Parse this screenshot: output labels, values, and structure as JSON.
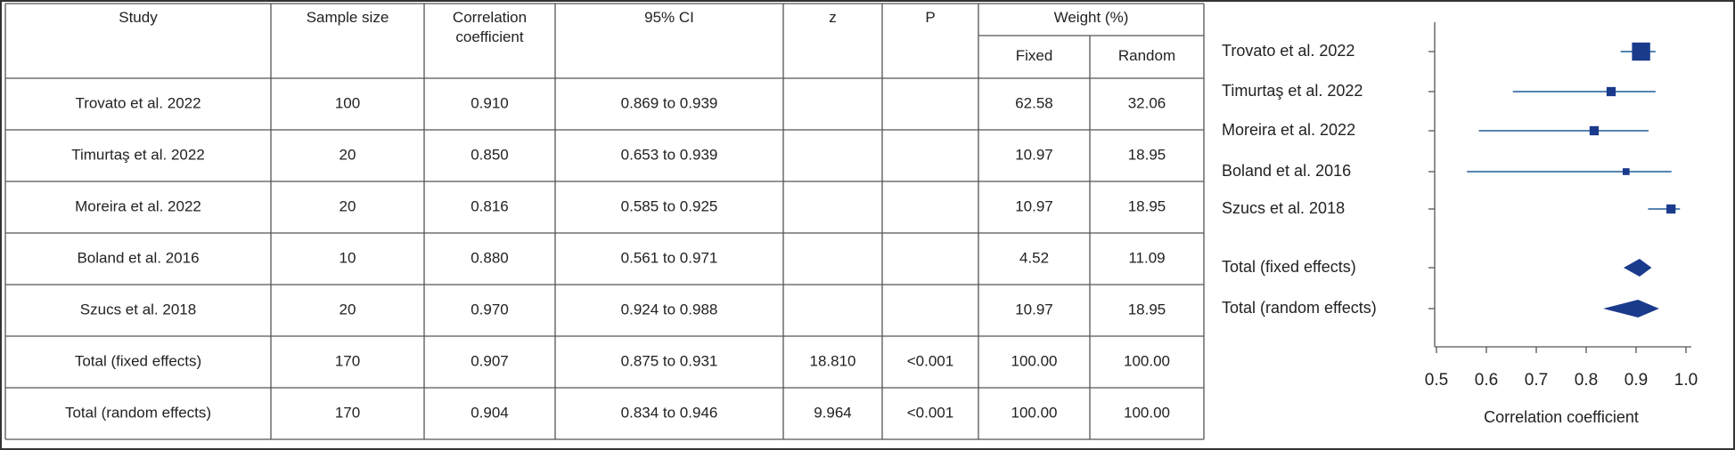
{
  "table": {
    "header": [
      "Study",
      "Sample size",
      "Correlation coefficient",
      "95% CI",
      "z",
      "P",
      "Weight (%)"
    ],
    "subheader": [
      "Fixed",
      "Random"
    ],
    "rows": [
      [
        "Trovato et al. 2022",
        "100",
        "0.910",
        "0.869 to 0.939",
        null,
        null,
        "62.58",
        "32.06"
      ],
      [
        "Timurtaş et al. 2022",
        "20",
        "0.850",
        "0.653 to 0.939",
        null,
        null,
        "10.97",
        "18.95"
      ],
      [
        "Moreira et al. 2022",
        "20",
        "0.816",
        "0.585 to 0.925",
        null,
        null,
        "10.97",
        "18.95"
      ],
      [
        "Boland et al. 2016",
        "10",
        "0.880",
        "0.561 to 0.971",
        null,
        null,
        "4.52",
        "11.09"
      ],
      [
        "Szucs et al. 2018",
        "20",
        "0.970",
        "0.924 to 0.988",
        null,
        null,
        "10.97",
        "18.95"
      ],
      [
        "Total (fixed effects)",
        "170",
        "0.907",
        "0.875 to 0.931",
        "18.810",
        "<0.001",
        "100.00",
        "100.00"
      ],
      [
        "Total (random effects)",
        "170",
        "0.904",
        "0.834 to 0.946",
        "9.964",
        "<0.001",
        "100.00",
        "100.00"
      ]
    ]
  },
  "chart_data": {
    "type": "forest",
    "xlabel": "Correlation coefficient",
    "categories": [
      "Trovato et al. 2022",
      "Timurtaş et al. 2022",
      "Moreira et al. 2022",
      "Boland et al. 2016",
      "Szucs et al. 2018",
      "Total (fixed effects)",
      "Total (random effects)"
    ],
    "values": [
      0.91,
      0.85,
      0.816,
      0.88,
      0.97,
      0.907,
      0.904
    ],
    "lower": [
      0.869,
      0.653,
      0.585,
      0.561,
      0.924,
      0.875,
      0.834
    ],
    "upper": [
      0.939,
      0.939,
      0.925,
      0.971,
      0.988,
      0.931,
      0.946
    ],
    "weights": [
      62.58,
      10.97,
      10.97,
      4.52,
      10.97
    ],
    "color": "#1a3a8c",
    "line_color": "#1f5c99",
    "xlim": [
      0.5,
      1
    ],
    "xticks": [
      0.5,
      0.6,
      0.7,
      0.8,
      0.9,
      {
        "value": 1,
        "label": "1.0"
      }
    ]
  }
}
